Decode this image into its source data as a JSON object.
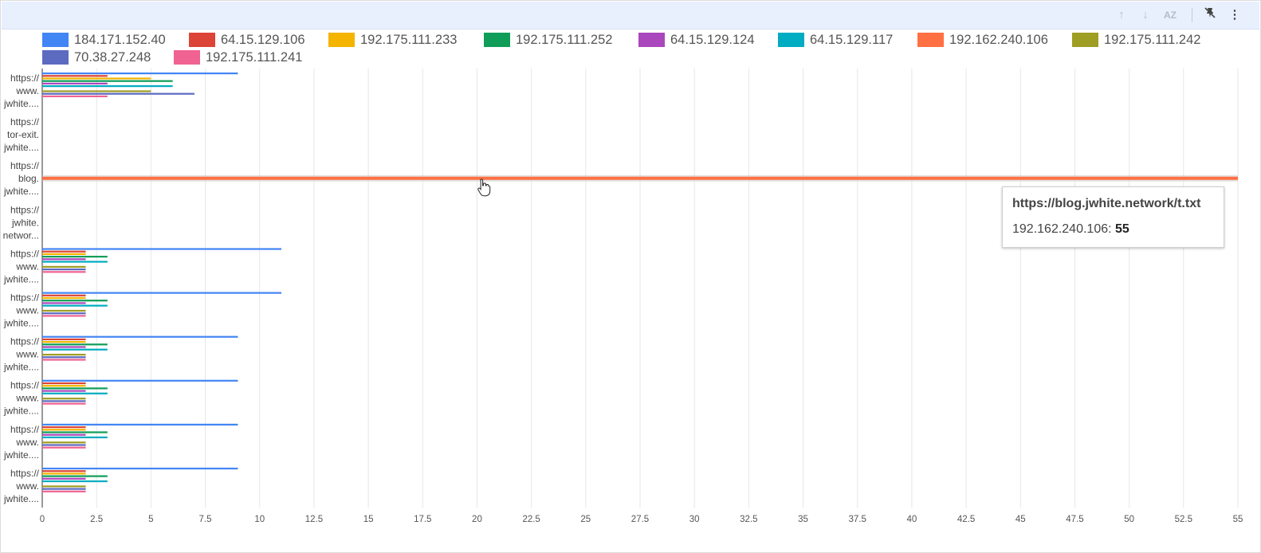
{
  "toolbar": {
    "icons": [
      "arrow-up-icon",
      "arrow-down-icon",
      "sort-az-icon",
      "pin-off-icon",
      "more-vert-icon"
    ],
    "sort_label": "AZ"
  },
  "legend": [
    {
      "name": "184.171.152.40",
      "color": "#4285f4"
    },
    {
      "name": "64.15.129.106",
      "color": "#db4437"
    },
    {
      "name": "192.175.111.233",
      "color": "#f4b400"
    },
    {
      "name": "192.175.111.252",
      "color": "#0f9d58"
    },
    {
      "name": "64.15.129.124",
      "color": "#ab47bc"
    },
    {
      "name": "64.15.129.117",
      "color": "#00acc1"
    },
    {
      "name": "192.162.240.106",
      "color": "#ff7043"
    },
    {
      "name": "192.175.111.242",
      "color": "#9e9d24"
    },
    {
      "name": "70.38.27.248",
      "color": "#5c6bc0"
    },
    {
      "name": "192.175.111.241",
      "color": "#f06292"
    }
  ],
  "chart_data": {
    "type": "bar",
    "orientation": "horizontal",
    "categories": [
      [
        "https://",
        "www.",
        "jwhite...."
      ],
      [
        "https://",
        "tor-exit.",
        "jwhite...."
      ],
      [
        "https://",
        "blog.",
        "jwhite...."
      ],
      [
        "https://",
        "jwhite.",
        "networ..."
      ],
      [
        "https://",
        "www.",
        "jwhite...."
      ],
      [
        "https://",
        "www.",
        "jwhite...."
      ],
      [
        "https://",
        "www.",
        "jwhite...."
      ],
      [
        "https://",
        "www.",
        "jwhite...."
      ],
      [
        "https://",
        "www.",
        "jwhite...."
      ],
      [
        "https://",
        "www.",
        "jwhite...."
      ]
    ],
    "series": [
      {
        "name": "184.171.152.40",
        "values": [
          9,
          0,
          0,
          0,
          11,
          11,
          9,
          9,
          9,
          9
        ]
      },
      {
        "name": "64.15.129.106",
        "values": [
          3,
          0,
          0,
          0,
          2,
          2,
          2,
          2,
          2,
          2
        ]
      },
      {
        "name": "192.175.111.233",
        "values": [
          5,
          0,
          0,
          0,
          2,
          2,
          2,
          2,
          2,
          2
        ]
      },
      {
        "name": "192.175.111.252",
        "values": [
          6,
          0,
          0,
          0,
          3,
          3,
          3,
          3,
          3,
          3
        ]
      },
      {
        "name": "64.15.129.124",
        "values": [
          3,
          0,
          0,
          0,
          2,
          2,
          2,
          2,
          2,
          2
        ]
      },
      {
        "name": "64.15.129.117",
        "values": [
          6,
          0,
          0,
          0,
          3,
          3,
          3,
          3,
          3,
          3
        ]
      },
      {
        "name": "192.162.240.106",
        "values": [
          0,
          0,
          55,
          0,
          0,
          0,
          0,
          0,
          0,
          0
        ]
      },
      {
        "name": "192.175.111.242",
        "values": [
          5,
          0,
          0,
          0,
          2,
          2,
          2,
          2,
          2,
          2
        ]
      },
      {
        "name": "70.38.27.248",
        "values": [
          7,
          0,
          0,
          0,
          2,
          2,
          2,
          2,
          2,
          2
        ]
      },
      {
        "name": "192.175.111.241",
        "values": [
          3,
          0,
          0,
          0,
          2,
          2,
          2,
          2,
          2,
          2
        ]
      }
    ],
    "xlim": [
      0,
      55
    ],
    "xticks": [
      "0",
      "2.5",
      "5",
      "7.5",
      "10",
      "12.5",
      "15",
      "17.5",
      "20",
      "22.5",
      "25",
      "27.5",
      "30",
      "32.5",
      "35",
      "37.5",
      "40",
      "42.5",
      "45",
      "47.5",
      "50",
      "52.5",
      "55"
    ],
    "grid": true,
    "legend_position": "top",
    "highlighted_category": 2,
    "highlighted_series": "192.162.240.106"
  },
  "tooltip": {
    "title": "https://blog.jwhite.network/t.txt",
    "series_label": "192.162.240.106: ",
    "value": "55"
  }
}
